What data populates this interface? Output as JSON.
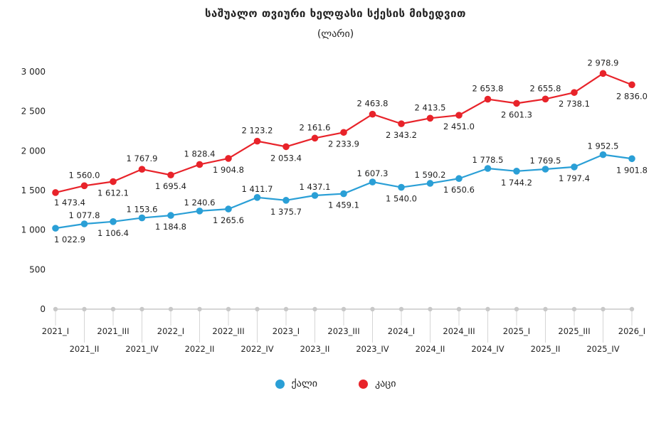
{
  "chart_data": {
    "type": "line",
    "title": "საშუალო თვიური ხელფასი სქესის მიხედვით",
    "subtitle": "(ლარი)",
    "categories": [
      "2021_I",
      "2021_II",
      "2021_III",
      "2021_IV",
      "2022_I",
      "2022_II",
      "2022_III",
      "2022_IV",
      "2023_I",
      "2023_II",
      "2023_III",
      "2023_IV",
      "2024_I",
      "2024_II",
      "2024_III",
      "2024_IV",
      "2025_I",
      "2025_II",
      "2025_III",
      "2025_IV",
      "2026_I"
    ],
    "series": [
      {
        "name": "ქალი",
        "color": "#2a9fd6",
        "values": [
          1022.9,
          1077.8,
          1106.4,
          1153.6,
          1184.8,
          1240.6,
          1265.6,
          1411.7,
          1375.7,
          1437.1,
          1459.1,
          1607.3,
          1540.0,
          1590.2,
          1650.6,
          1778.5,
          1744.2,
          1769.5,
          1797.4,
          1952.5,
          1901.8
        ],
        "labels": [
          "1 022.9",
          "1 077.8",
          "1 106.4",
          "1 153.6",
          "1 184.8",
          "1 240.6",
          "1 265.6",
          "1 411.7",
          "1 375.7",
          "1 437.1",
          "1 459.1",
          "1 607.3",
          "1 540.0",
          "1 590.2",
          "1 650.6",
          "1 778.5",
          "1 744.2",
          "1 769.5",
          "1 797.4",
          "1 952.5",
          "1 901.8"
        ]
      },
      {
        "name": "კაცი",
        "color": "#e8232a",
        "values": [
          1473.4,
          1560.0,
          1612.1,
          1767.9,
          1695.4,
          1828.4,
          1904.8,
          2123.2,
          2053.4,
          2161.6,
          2233.9,
          2463.8,
          2343.2,
          2413.5,
          2451.0,
          2653.8,
          2601.3,
          2655.8,
          2738.1,
          2978.9,
          2836.0
        ],
        "labels": [
          "1 473.4",
          "1 560.0",
          "1 612.1",
          "1 767.9",
          "1 695.4",
          "1 828.4",
          "1 904.8",
          "2 123.2",
          "2 053.4",
          "2 161.6",
          "2 233.9",
          "2 463.8",
          "2 343.2",
          "2 413.5",
          "2 451.0",
          "2 653.8",
          "2 601.3",
          "2 655.8",
          "2 738.1",
          "2 978.9",
          "2 836.0"
        ]
      }
    ],
    "yticks": [
      0,
      500,
      1000,
      1500,
      2000,
      2500,
      3000
    ],
    "ytick_labels": [
      "0",
      "500",
      "1 000",
      "1 500",
      "2 000",
      "2 500",
      "3 000"
    ],
    "ylim": [
      0,
      3000
    ],
    "grid": false,
    "legend": "bottom-center",
    "baseline_color": "#c8c8c8"
  }
}
